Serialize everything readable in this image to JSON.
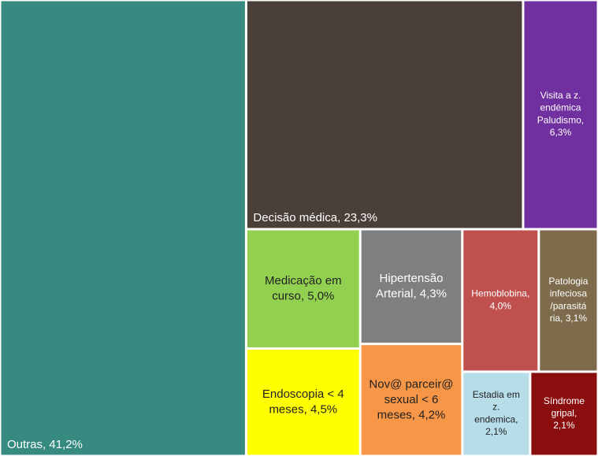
{
  "chart_data": {
    "type": "treemap",
    "values": [
      41.2,
      23.3,
      6.3,
      5.0,
      4.5,
      4.3,
      4.2,
      4.0,
      3.1,
      2.1,
      2.1
    ],
    "value_labels": [
      "Outras, 41,2%",
      "Decisão médica, 23,3%",
      "Visita a z. endémica Paludismo, 6,3%",
      "Medicação em curso, 5,0%",
      "Endoscopia < 4 meses, 4,5%",
      "Hipertensão Arterial, 4,3%",
      "Nov@ parceir@ sexual < 6 meses, 4,2%",
      "Hemoblobina, 4,0%",
      "Patologia infeciosa/parasitária, 3,1%",
      "Estadia em z. endemica, 2,1%",
      "Síndrome gripal, 2,1%"
    ],
    "colors": [
      "#368a80",
      "#4a4039",
      "#7030a0",
      "#92d050",
      "#ffff00",
      "#7f7f7f",
      "#f79646",
      "#c0504d",
      "#7d6b4b",
      "#b7dde8",
      "#8b0f0f"
    ]
  }
}
